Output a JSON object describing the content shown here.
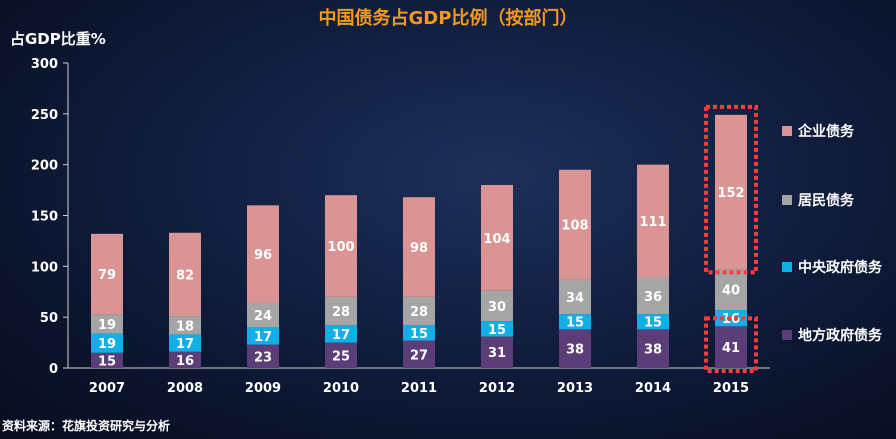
{
  "chart_data": {
    "type": "bar",
    "stacked": true,
    "title": "中国债务占GDP比例（按部门）",
    "ylabel": "占GDP比重%",
    "ylim": [
      0,
      300
    ],
    "yticks": [
      0,
      50,
      100,
      150,
      200,
      250,
      300
    ],
    "grid": false,
    "legend": "right",
    "categories": [
      "2007",
      "2008",
      "2009",
      "2010",
      "2011",
      "2012",
      "2013",
      "2014",
      "2015"
    ],
    "series": [
      {
        "name": "地方政府债务",
        "color": "#5b3d78",
        "values": [
          15,
          16,
          23,
          25,
          27,
          31,
          38,
          38,
          41
        ]
      },
      {
        "name": "中央政府债务",
        "color": "#12aee8",
        "values": [
          19,
          17,
          17,
          17,
          15,
          15,
          15,
          15,
          16
        ]
      },
      {
        "name": "居民债务",
        "color": "#a5a5a5",
        "values": [
          19,
          18,
          24,
          28,
          28,
          30,
          34,
          36,
          40
        ]
      },
      {
        "name": "企业债务",
        "color": "#d99493",
        "values": [
          79,
          82,
          96,
          100,
          98,
          104,
          108,
          111,
          152
        ]
      }
    ],
    "legend_order": [
      "企业债务",
      "居民债务",
      "中央政府债务",
      "地方政府债务"
    ],
    "highlight": {
      "category": "2015",
      "series": [
        "企业债务",
        "地方政府债务"
      ],
      "color": "#ff3b3b"
    }
  },
  "source": "资料来源：花旗投资研究与分析"
}
